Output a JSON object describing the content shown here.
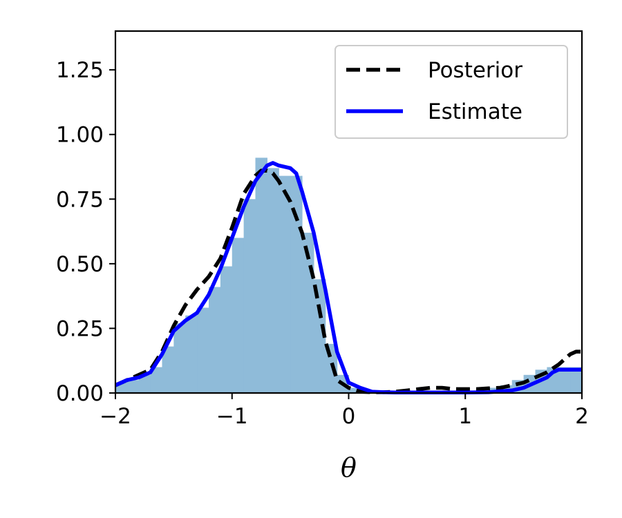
{
  "chart_data": {
    "type": "line",
    "title": "",
    "xlabel": "θ",
    "ylabel": "",
    "xlim": [
      -2,
      2
    ],
    "ylim": [
      0,
      1.4
    ],
    "xticks": [
      -2,
      -1,
      0,
      1,
      2
    ],
    "xtick_labels": [
      "−2",
      "−1",
      "0",
      "1",
      "2"
    ],
    "yticks": [
      0,
      0.25,
      0.5,
      0.75,
      1.0,
      1.25
    ],
    "ytick_labels": [
      "0.00",
      "0.25",
      "0.50",
      "0.75",
      "1.00",
      "1.25"
    ],
    "grid": false,
    "legend": {
      "placement": "top-right",
      "entries": [
        {
          "label": "Posterior",
          "color": "#000000",
          "style": "dashed"
        },
        {
          "label": "Estimate",
          "color": "#0000ff",
          "style": "solid"
        }
      ]
    },
    "histogram": {
      "color": "#8fbbd9",
      "bin_edges": [
        -2.0,
        -1.9,
        -1.8,
        -1.7,
        -1.6,
        -1.5,
        -1.4,
        -1.3,
        -1.2,
        -1.1,
        -1.0,
        -0.9,
        -0.8,
        -0.7,
        -0.6,
        -0.5,
        -0.4,
        -0.3,
        -0.2,
        -0.1,
        0.0,
        0.1,
        0.2,
        0.3,
        0.4,
        0.5,
        0.6,
        0.7,
        0.8,
        0.9,
        1.0,
        1.1,
        1.2,
        1.3,
        1.4,
        1.5,
        1.6,
        1.7,
        1.8,
        1.9,
        2.0
      ],
      "values": [
        0.04,
        0.05,
        0.07,
        0.1,
        0.18,
        0.27,
        0.3,
        0.33,
        0.41,
        0.49,
        0.6,
        0.75,
        0.91,
        0.87,
        0.84,
        0.84,
        0.62,
        0.44,
        0.19,
        0.07,
        0.02,
        0.01,
        0.005,
        0.005,
        0.005,
        0.005,
        0.005,
        0.005,
        0.005,
        0.005,
        0.005,
        0.01,
        0.02,
        0.03,
        0.05,
        0.07,
        0.09,
        0.1,
        0.1,
        0.1
      ]
    },
    "series": [
      {
        "name": "Posterior",
        "color": "#000000",
        "style": "dashed",
        "x": [
          -2.0,
          -1.9,
          -1.8,
          -1.7,
          -1.6,
          -1.5,
          -1.4,
          -1.3,
          -1.2,
          -1.1,
          -1.0,
          -0.9,
          -0.8,
          -0.75,
          -0.7,
          -0.65,
          -0.6,
          -0.5,
          -0.4,
          -0.3,
          -0.2,
          -0.1,
          0.0,
          0.1,
          0.2,
          0.3,
          0.4,
          0.5,
          0.6,
          0.7,
          0.8,
          0.9,
          1.0,
          1.1,
          1.2,
          1.3,
          1.4,
          1.5,
          1.6,
          1.7,
          1.8,
          1.9,
          1.95,
          2.0
        ],
        "y": [
          0.03,
          0.05,
          0.07,
          0.09,
          0.16,
          0.26,
          0.34,
          0.4,
          0.45,
          0.52,
          0.64,
          0.77,
          0.84,
          0.86,
          0.86,
          0.85,
          0.82,
          0.74,
          0.62,
          0.44,
          0.2,
          0.05,
          0.02,
          0.005,
          0.003,
          0.003,
          0.005,
          0.01,
          0.015,
          0.02,
          0.02,
          0.015,
          0.015,
          0.015,
          0.018,
          0.02,
          0.03,
          0.04,
          0.06,
          0.08,
          0.11,
          0.15,
          0.16,
          0.16
        ]
      },
      {
        "name": "Estimate",
        "color": "#0000ff",
        "style": "solid",
        "x": [
          -2.0,
          -1.9,
          -1.8,
          -1.7,
          -1.6,
          -1.5,
          -1.4,
          -1.3,
          -1.2,
          -1.1,
          -1.0,
          -0.9,
          -0.8,
          -0.7,
          -0.65,
          -0.6,
          -0.5,
          -0.45,
          -0.4,
          -0.3,
          -0.2,
          -0.1,
          0.0,
          0.1,
          0.2,
          0.3,
          0.4,
          0.5,
          0.6,
          0.8,
          1.0,
          1.2,
          1.4,
          1.5,
          1.6,
          1.7,
          1.75,
          1.8,
          1.9,
          2.0
        ],
        "y": [
          0.03,
          0.05,
          0.06,
          0.08,
          0.15,
          0.24,
          0.28,
          0.31,
          0.38,
          0.48,
          0.6,
          0.72,
          0.82,
          0.88,
          0.89,
          0.88,
          0.87,
          0.85,
          0.78,
          0.62,
          0.4,
          0.16,
          0.04,
          0.02,
          0.005,
          0.003,
          0.002,
          0.002,
          0.002,
          0.002,
          0.002,
          0.003,
          0.01,
          0.02,
          0.04,
          0.06,
          0.08,
          0.09,
          0.09,
          0.09
        ]
      }
    ]
  }
}
